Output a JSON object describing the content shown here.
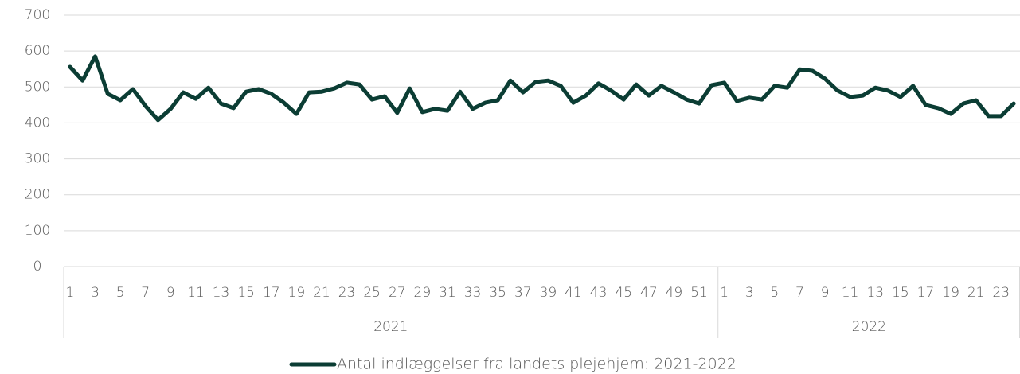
{
  "chart_data": {
    "type": "line",
    "category_groups": [
      {
        "label": "2021",
        "categories": [
          "1",
          null,
          "3",
          null,
          "5",
          null,
          "7",
          null,
          "9",
          null,
          "11",
          null,
          "13",
          null,
          "15",
          null,
          "17",
          null,
          "19",
          null,
          "21",
          null,
          "23",
          null,
          "25",
          null,
          "27",
          null,
          "29",
          null,
          "31",
          null,
          "33",
          null,
          "35",
          null,
          "37",
          null,
          "39",
          null,
          "41",
          null,
          "43",
          null,
          "45",
          null,
          "47",
          null,
          "49",
          null,
          "51",
          null
        ]
      },
      {
        "label": "2022",
        "categories": [
          "1",
          null,
          "3",
          null,
          "5",
          null,
          "7",
          null,
          "9",
          null,
          "11",
          null,
          "13",
          null,
          "15",
          null,
          "17",
          null,
          "19",
          null,
          "21",
          null,
          "23",
          null
        ]
      }
    ],
    "series": [
      {
        "name": "Antal indlæggelser fra landets plejehjem: 2021-2022",
        "color": "#0b3d34",
        "values": [
          556,
          518,
          585,
          481,
          463,
          494,
          447,
          408,
          439,
          485,
          467,
          498,
          454,
          441,
          487,
          494,
          481,
          456,
          425,
          485,
          487,
          496,
          512,
          507,
          465,
          474,
          428,
          496,
          430,
          439,
          434,
          487,
          439,
          456,
          463,
          518,
          485,
          514,
          518,
          503,
          456,
          476,
          510,
          490,
          465,
          507,
          476,
          503,
          485,
          465,
          454,
          505,
          512,
          461,
          470,
          465,
          503,
          498,
          549,
          545,
          523,
          490,
          472,
          476,
          498,
          490,
          472,
          503,
          450,
          441,
          425,
          454,
          463,
          419,
          419,
          454
        ]
      }
    ],
    "ylim": [
      0,
      700
    ],
    "yticks": [
      0,
      100,
      200,
      300,
      400,
      500,
      600,
      700
    ],
    "grid": true,
    "legend": "bottom"
  }
}
